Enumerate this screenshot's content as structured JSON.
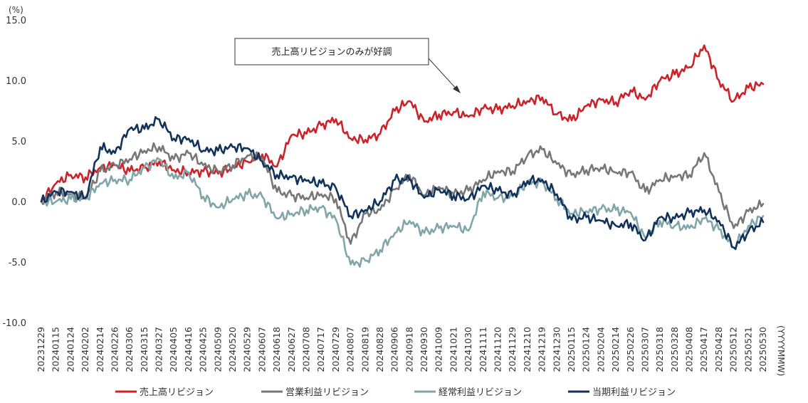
{
  "chart_data": {
    "type": "line",
    "y_unit": "(%)",
    "x_unit": "(YYYYMMW)",
    "ylim": [
      -10,
      15
    ],
    "yticks": [
      "15.0",
      "10.0",
      "5.0",
      "0.0",
      "-5.0",
      "-10.0"
    ],
    "ytick_values": [
      15,
      10,
      5,
      0,
      -5,
      -10
    ],
    "grid": false,
    "legend_position": "bottom",
    "annotation": "売上高リビジョンのみが好調",
    "x": [
      "20231229",
      "20240115",
      "20240124",
      "20240202",
      "20240214",
      "20240226",
      "20240306",
      "20240315",
      "20240327",
      "20240405",
      "20240416",
      "20240425",
      "20240509",
      "20240520",
      "20240529",
      "20240607",
      "20240618",
      "20240627",
      "20240708",
      "20240717",
      "20240729",
      "20240807",
      "20240819",
      "20240828",
      "20240906",
      "20240918",
      "20240930",
      "20241009",
      "20241021",
      "20241030",
      "20241111",
      "20241120",
      "20241129",
      "20241210",
      "20241219",
      "20241230",
      "20250115",
      "20250124",
      "20250204",
      "20250214",
      "20250226",
      "20250307",
      "20250318",
      "20250328",
      "20250408",
      "20250417",
      "20250428",
      "20250512",
      "20250521",
      "20250530"
    ],
    "series": [
      {
        "name": "売上高リビジョン",
        "color": "#cc2229",
        "values": [
          0.0,
          1.5,
          2.2,
          2.0,
          2.8,
          3.0,
          2.5,
          2.8,
          3.3,
          2.6,
          2.4,
          2.5,
          2.3,
          2.8,
          3.3,
          3.9,
          2.9,
          5.5,
          5.6,
          6.3,
          6.8,
          5.2,
          5.1,
          5.6,
          7.5,
          8.3,
          6.6,
          7.2,
          7.4,
          7.0,
          7.7,
          7.6,
          7.9,
          8.3,
          8.6,
          7.2,
          6.7,
          7.9,
          8.4,
          8.2,
          9.2,
          8.4,
          10.0,
          10.5,
          11.1,
          12.9,
          10.0,
          8.3,
          9.4,
          9.7
        ]
      },
      {
        "name": "営業利益リビジョン",
        "color": "#777777",
        "values": [
          0.0,
          0.8,
          0.6,
          0.3,
          2.5,
          3.0,
          3.5,
          4.2,
          4.5,
          3.5,
          4.0,
          3.0,
          2.5,
          3.0,
          3.8,
          3.6,
          0.8,
          0.5,
          0.3,
          0.6,
          0.2,
          -3.5,
          -1.0,
          -0.7,
          1.0,
          2.2,
          0.5,
          1.2,
          0.6,
          0.9,
          1.8,
          2.5,
          2.5,
          3.8,
          4.3,
          3.1,
          2.2,
          2.6,
          2.8,
          2.4,
          2.4,
          0.8,
          1.8,
          2.1,
          2.2,
          4.0,
          0.8,
          -2.2,
          -0.8,
          -0.2
        ]
      },
      {
        "name": "経常利益リビジョン",
        "color": "#80a6aa",
        "values": [
          0.0,
          0.0,
          0.2,
          0.2,
          1.5,
          1.8,
          1.8,
          2.8,
          3.5,
          1.9,
          2.4,
          0.4,
          -0.5,
          0.2,
          0.6,
          0.4,
          -1.4,
          -1.0,
          -0.7,
          -0.5,
          -1.5,
          -5.2,
          -4.9,
          -4.0,
          -2.6,
          -1.6,
          -2.6,
          -2.2,
          -2.0,
          -2.4,
          0.8,
          0.3,
          0.4,
          1.5,
          1.6,
          0.2,
          -1.0,
          -0.8,
          -0.6,
          -0.7,
          -0.9,
          -3.0,
          -1.6,
          -2.0,
          -2.2,
          -1.4,
          -2.3,
          -3.8,
          -2.0,
          -1.2
        ]
      },
      {
        "name": "当期利益リビジョン",
        "color": "#11325a",
        "values": [
          0.0,
          0.8,
          0.8,
          0.3,
          4.5,
          4.0,
          6.0,
          6.0,
          6.8,
          5.2,
          5.2,
          4.2,
          4.2,
          4.5,
          4.4,
          3.3,
          2.2,
          2.0,
          1.7,
          1.5,
          1.1,
          -1.2,
          -0.7,
          0.0,
          1.8,
          1.8,
          0.3,
          1.0,
          0.5,
          0.2,
          1.3,
          0.9,
          0.5,
          1.7,
          1.8,
          0.6,
          -1.5,
          -1.3,
          -1.6,
          -2.0,
          -1.8,
          -3.2,
          -1.3,
          -1.4,
          -0.9,
          -0.7,
          -1.6,
          -3.8,
          -2.5,
          -1.7
        ]
      }
    ]
  }
}
